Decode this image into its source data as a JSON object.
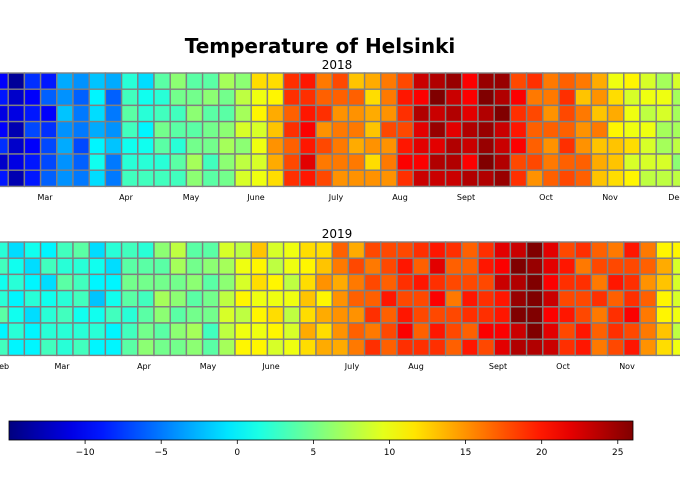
{
  "figure": {
    "title": "Temperature of Helsinki"
  },
  "chart_data": [
    {
      "type": "heatmap",
      "title": "2018",
      "rows": 7,
      "col_step": 2,
      "month_ticks": [
        "Mar",
        "Apr",
        "May",
        "June",
        "July",
        "Aug",
        "Sept",
        "Oct",
        "Nov",
        "Dec"
      ],
      "grid": true,
      "cell_edge_color": "#808080",
      "weekly_temps": [
        -10,
        -12,
        -9,
        -8,
        -3,
        -6,
        -1,
        -4,
        2,
        1,
        3,
        4,
        5,
        4,
        6,
        7,
        10,
        13,
        18,
        20,
        17,
        16,
        15,
        13,
        16,
        19,
        22,
        24,
        23,
        22,
        25,
        24,
        19,
        17,
        16,
        18,
        15,
        14,
        12,
        10,
        9,
        8,
        7,
        6,
        5,
        4,
        4,
        3
      ],
      "offsets": [
        [
          0,
          -2,
          1,
          -1,
          0,
          2,
          -1,
          1,
          0,
          -2,
          1,
          2,
          -1,
          0,
          1,
          -1,
          2,
          -1,
          1,
          0,
          -1,
          2,
          -2,
          1,
          0,
          -1,
          1,
          0,
          2,
          -1,
          0,
          1,
          -1,
          2,
          0,
          -1,
          1,
          0,
          -2,
          1,
          0,
          -1,
          2,
          0,
          -1,
          1,
          0,
          -1
        ],
        [
          1,
          0,
          -1,
          2,
          -1,
          0,
          1,
          -2,
          1,
          0,
          -1,
          1,
          0,
          2,
          -1,
          1,
          0,
          -2,
          1,
          -1,
          0,
          1,
          2,
          -1,
          0,
          1,
          -1,
          2,
          0,
          -1,
          1,
          0,
          2,
          -1,
          0,
          1,
          -2,
          1,
          0,
          -1,
          1,
          2,
          0,
          -1,
          1,
          0,
          -1,
          1
        ],
        [
          -1,
          1,
          0,
          -2,
          1,
          1,
          0,
          -1,
          2,
          1,
          0,
          -1,
          1,
          0,
          -2,
          0,
          1,
          1,
          -1,
          0,
          2,
          -1,
          0,
          1,
          -1,
          0,
          2,
          -1,
          1,
          0,
          -1,
          2,
          0,
          1,
          -1,
          0,
          1,
          -1,
          2,
          0,
          -1,
          1,
          0,
          1,
          -2,
          0,
          1,
          0
        ],
        [
          0,
          -1,
          2,
          0,
          -1,
          1,
          -2,
          0,
          1,
          -1,
          2,
          0,
          -1,
          1,
          0,
          2,
          -1,
          0,
          1,
          1,
          -2,
          0,
          1,
          0,
          2,
          -1,
          0,
          1,
          -1,
          2,
          0,
          -1,
          1,
          0,
          1,
          -1,
          0,
          2,
          -1,
          0,
          1,
          -1,
          0,
          2,
          0,
          -1,
          1,
          1
        ],
        [
          2,
          0,
          -1,
          1,
          0,
          -1,
          1,
          2,
          -1,
          0,
          1,
          -2,
          0,
          1,
          1,
          -1,
          0,
          2,
          -1,
          0,
          1,
          0,
          -1,
          2,
          -1,
          1,
          0,
          -2,
          1,
          1,
          0,
          -1,
          2,
          0,
          -1,
          1,
          0,
          -1,
          1,
          2,
          0,
          -1,
          1,
          0,
          -1,
          2,
          0,
          -1
        ],
        [
          -2,
          1,
          0,
          1,
          -1,
          0,
          2,
          -1,
          0,
          1,
          -1,
          0,
          2,
          -1,
          0,
          1,
          -1,
          1,
          0,
          2,
          -1,
          0,
          1,
          -1,
          0,
          2,
          -1,
          0,
          1,
          -1,
          2,
          0,
          -1,
          1,
          0,
          -1,
          2,
          0,
          1,
          -1,
          0,
          1,
          -1,
          0,
          2,
          -1,
          1,
          0
        ],
        [
          1,
          -1,
          0,
          2,
          -1,
          1,
          0,
          -1,
          1,
          2,
          0,
          -1,
          1,
          0,
          -1,
          2,
          0,
          -1,
          1,
          0,
          1,
          -1,
          0,
          2,
          -1,
          0,
          1,
          -1,
          0,
          2,
          -1,
          1,
          0,
          -2,
          1,
          0,
          2,
          -1,
          0,
          1,
          -1,
          0,
          1,
          2,
          -1,
          0,
          1,
          -1
        ]
      ]
    },
    {
      "type": "heatmap",
      "title": "2019",
      "rows": 7,
      "col_step": 2,
      "month_ticks": [
        "Feb",
        "Mar",
        "Apr",
        "May",
        "June",
        "July",
        "Aug",
        "Sept",
        "Oct",
        "Nov"
      ],
      "grid": true,
      "cell_edge_color": "#808080",
      "weekly_temps": [
        2,
        1,
        0,
        1,
        3,
        2,
        0,
        1,
        3,
        4,
        5,
        6,
        5,
        4,
        8,
        9,
        11,
        10,
        9,
        12,
        13,
        15,
        16,
        17,
        18,
        19,
        18,
        20,
        17,
        18,
        19,
        21,
        24,
        26,
        22,
        19,
        18,
        17,
        18,
        19,
        16,
        12,
        9,
        8,
        6,
        5,
        4,
        2
      ],
      "offsets": [
        [
          0,
          -2,
          1,
          -1,
          0,
          2,
          -1,
          1,
          0,
          -2,
          1,
          2,
          -1,
          0,
          1,
          -1,
          2,
          -1,
          1,
          0,
          -1,
          2,
          -2,
          1,
          0,
          -1,
          1,
          0,
          2,
          -1,
          0,
          1,
          -1,
          2,
          0,
          -1,
          1,
          0,
          -2,
          1,
          0,
          -1,
          2,
          0,
          -1,
          1,
          0,
          -1
        ],
        [
          1,
          0,
          -1,
          2,
          -1,
          0,
          1,
          -2,
          1,
          0,
          -1,
          1,
          0,
          2,
          -1,
          1,
          0,
          -2,
          1,
          -1,
          0,
          1,
          2,
          -1,
          0,
          1,
          -1,
          2,
          0,
          -1,
          1,
          0,
          2,
          -1,
          0,
          1,
          -2,
          1,
          0,
          -1,
          1,
          2,
          0,
          -1,
          1,
          0,
          -1,
          1
        ],
        [
          -1,
          1,
          0,
          -2,
          1,
          1,
          0,
          -1,
          2,
          1,
          0,
          -1,
          1,
          0,
          -2,
          0,
          1,
          1,
          -1,
          0,
          2,
          -1,
          0,
          1,
          -1,
          0,
          2,
          -1,
          1,
          0,
          -1,
          2,
          0,
          1,
          -1,
          0,
          1,
          -1,
          2,
          0,
          -1,
          1,
          0,
          1,
          -2,
          0,
          1,
          0
        ],
        [
          0,
          -1,
          2,
          0,
          -1,
          1,
          -2,
          0,
          1,
          -1,
          2,
          0,
          -1,
          1,
          0,
          2,
          -1,
          0,
          1,
          1,
          -2,
          0,
          1,
          0,
          2,
          -1,
          0,
          1,
          -1,
          2,
          0,
          -1,
          1,
          0,
          1,
          -1,
          0,
          2,
          -1,
          0,
          1,
          -1,
          0,
          2,
          0,
          -1,
          1,
          1
        ],
        [
          2,
          0,
          -1,
          1,
          0,
          -1,
          1,
          2,
          -1,
          0,
          1,
          -2,
          0,
          1,
          1,
          -1,
          0,
          2,
          -1,
          0,
          1,
          0,
          -1,
          2,
          -1,
          1,
          0,
          -2,
          1,
          1,
          0,
          -1,
          2,
          0,
          -1,
          1,
          0,
          -1,
          1,
          2,
          0,
          -1,
          1,
          0,
          -1,
          2,
          0,
          -1
        ],
        [
          -2,
          1,
          0,
          1,
          -1,
          0,
          2,
          -1,
          0,
          1,
          -1,
          0,
          2,
          -1,
          0,
          1,
          -1,
          1,
          0,
          2,
          -1,
          0,
          1,
          -1,
          0,
          2,
          -1,
          0,
          1,
          -1,
          2,
          0,
          -1,
          1,
          0,
          -1,
          2,
          0,
          1,
          -1,
          0,
          1,
          -1,
          0,
          2,
          -1,
          1,
          0
        ],
        [
          1,
          -1,
          0,
          2,
          -1,
          1,
          0,
          -1,
          1,
          2,
          0,
          -1,
          1,
          0,
          -1,
          2,
          0,
          -1,
          1,
          0,
          1,
          -1,
          0,
          2,
          -1,
          0,
          1,
          -1,
          0,
          2,
          -1,
          1,
          0,
          -2,
          1,
          0,
          2,
          -1,
          0,
          1,
          -1,
          0,
          1,
          2,
          -1,
          0,
          1,
          -1
        ]
      ]
    }
  ],
  "colorbar": {
    "colormap": "jet",
    "vmin": -15,
    "vmax": 26,
    "ticks": [
      -10,
      -5,
      0,
      5,
      10,
      15,
      20,
      25
    ],
    "tick_labels": [
      "−10",
      "−5",
      "0",
      "5",
      "10",
      "15",
      "20",
      "25"
    ]
  }
}
